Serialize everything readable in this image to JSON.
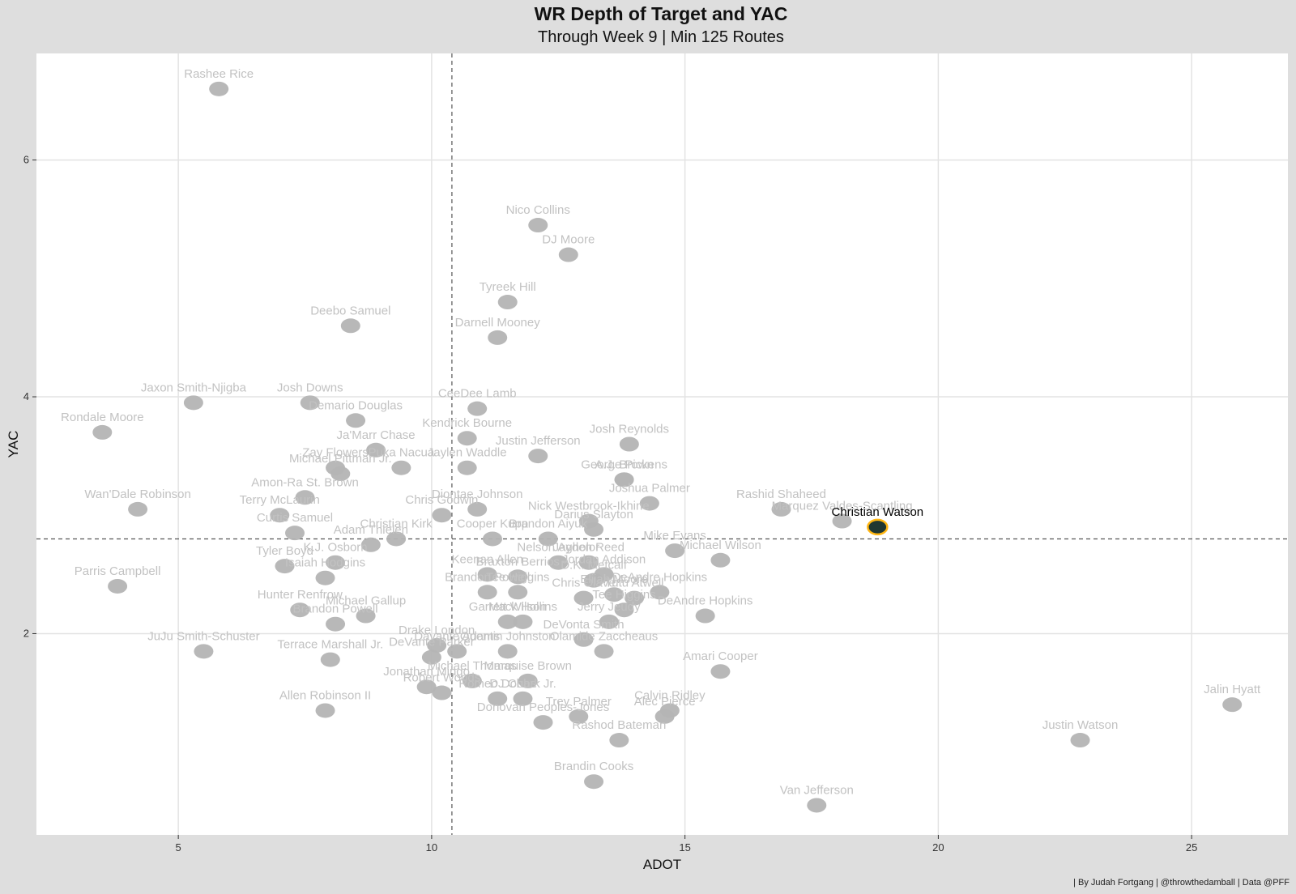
{
  "title": "WR Depth of Target and YAC",
  "subtitle": "Through Week 9 | Min 125 Routes",
  "caption": "| By Judah Fortgang | @throwthedamball | Data @PFF",
  "colors": {
    "panel": "#ffffff",
    "background": "#dedede",
    "grid": "#e3e3e3",
    "point": "#b4b4b4",
    "label": "#c2c2c2",
    "highlight_label": "#000000",
    "highlight_point": "#203731",
    "highlight_ring": "#ffb612"
  },
  "chart_data": {
    "type": "scatter",
    "title": "WR Depth of Target and YAC",
    "subtitle": "Through Week 9 | Min 125 Routes",
    "xlabel": "ADOT",
    "ylabel": "YAC",
    "xlim": [
      2.2,
      26.9
    ],
    "ylim": [
      0.3,
      6.9
    ],
    "xticks": [
      5,
      10,
      15,
      20,
      25
    ],
    "yticks": [
      2,
      4,
      6
    ],
    "grid": true,
    "reference_lines": {
      "x": 10.4,
      "y": 2.8
    },
    "highlight": "Christian Watson",
    "points": [
      {
        "name": "Rashee Rice",
        "x": 5.8,
        "y": 6.6
      },
      {
        "name": "Nico Collins",
        "x": 12.1,
        "y": 5.45
      },
      {
        "name": "DJ Moore",
        "x": 12.7,
        "y": 5.2
      },
      {
        "name": "Tyreek Hill",
        "x": 11.5,
        "y": 4.8
      },
      {
        "name": "Deebo Samuel",
        "x": 8.4,
        "y": 4.6
      },
      {
        "name": "Darnell Mooney",
        "x": 11.3,
        "y": 4.5
      },
      {
        "name": "Josh Downs",
        "x": 7.6,
        "y": 3.95
      },
      {
        "name": "CeeDee Lamb",
        "x": 10.9,
        "y": 3.9
      },
      {
        "name": "Jaxon Smith-Njigba",
        "x": 5.3,
        "y": 3.95
      },
      {
        "name": "Demario Douglas",
        "x": 8.5,
        "y": 3.8
      },
      {
        "name": "Rondale Moore",
        "x": 3.5,
        "y": 3.7
      },
      {
        "name": "Kendrick Bourne",
        "x": 10.7,
        "y": 3.65
      },
      {
        "name": "Josh Reynolds",
        "x": 13.9,
        "y": 3.6
      },
      {
        "name": "Ja'Marr Chase",
        "x": 8.9,
        "y": 3.55
      },
      {
        "name": "Justin Jefferson",
        "x": 12.1,
        "y": 3.5
      },
      {
        "name": "Zay Flowers",
        "x": 8.1,
        "y": 3.4
      },
      {
        "name": "Puka Nacua",
        "x": 9.4,
        "y": 3.4
      },
      {
        "name": "Jaylen Waddle",
        "x": 10.7,
        "y": 3.4
      },
      {
        "name": "George Pickens",
        "x": 13.8,
        "y": 3.3
      },
      {
        "name": "Michael Pittman Jr.",
        "x": 8.2,
        "y": 3.35
      },
      {
        "name": "A.J. Brown",
        "x": 13.8,
        "y": 3.3
      },
      {
        "name": "Amon-Ra St. Brown",
        "x": 7.5,
        "y": 3.15
      },
      {
        "name": "Diontae Johnson",
        "x": 10.9,
        "y": 3.05
      },
      {
        "name": "Chris Godwin",
        "x": 10.2,
        "y": 3.0
      },
      {
        "name": "Joshua Palmer",
        "x": 14.3,
        "y": 3.1
      },
      {
        "name": "Wan'Dale Robinson",
        "x": 4.2,
        "y": 3.05
      },
      {
        "name": "Rashid Shaheed",
        "x": 16.9,
        "y": 3.05
      },
      {
        "name": "Terry McLaurin",
        "x": 7.0,
        "y": 3.0
      },
      {
        "name": "Nick Westbrook-Ikhine",
        "x": 13.1,
        "y": 2.95
      },
      {
        "name": "Marquez Valdes-Scantling",
        "x": 18.1,
        "y": 2.95
      },
      {
        "name": "Christian Watson",
        "x": 18.8,
        "y": 2.9
      },
      {
        "name": "Curtis Samuel",
        "x": 7.3,
        "y": 2.85
      },
      {
        "name": "Darius Slayton",
        "x": 13.2,
        "y": 2.88
      },
      {
        "name": "Christian Kirk",
        "x": 9.3,
        "y": 2.8
      },
      {
        "name": "Cooper Kupp",
        "x": 11.2,
        "y": 2.8
      },
      {
        "name": "Brandon Aiyuk",
        "x": 12.3,
        "y": 2.8
      },
      {
        "name": "Adam Thielen",
        "x": 8.8,
        "y": 2.75
      },
      {
        "name": "Mike Evans",
        "x": 14.8,
        "y": 2.7
      },
      {
        "name": "Nelson Agholor",
        "x": 12.5,
        "y": 2.6
      },
      {
        "name": "K.J. Osborn",
        "x": 8.1,
        "y": 2.6
      },
      {
        "name": "Michael Wilson",
        "x": 15.7,
        "y": 2.62
      },
      {
        "name": "Tyler Boyd",
        "x": 7.1,
        "y": 2.57
      },
      {
        "name": "Jayden Reed",
        "x": 13.1,
        "y": 2.6
      },
      {
        "name": "Keenan Allen",
        "x": 11.1,
        "y": 2.5
      },
      {
        "name": "Jordan Addison",
        "x": 13.4,
        "y": 2.5
      },
      {
        "name": "Isaiah Hodgins",
        "x": 7.9,
        "y": 2.47
      },
      {
        "name": "Braxton Berrios",
        "x": 11.7,
        "y": 2.48
      },
      {
        "name": "Parris Campbell",
        "x": 3.8,
        "y": 2.4
      },
      {
        "name": "D.K. Metcalf",
        "x": 13.2,
        "y": 2.45
      },
      {
        "name": "Brandon Powell",
        "x": 11.1,
        "y": 2.35
      },
      {
        "name": "Tee Higgins",
        "x": 11.7,
        "y": 2.35
      },
      {
        "name": "DeAndre Hopkins",
        "x": 14.5,
        "y": 2.35
      },
      {
        "name": "Elijah Moore",
        "x": 13.6,
        "y": 2.33
      },
      {
        "name": "Chris Olave",
        "x": 13.0,
        "y": 2.3
      },
      {
        "name": "Tutu Atwell",
        "x": 14.0,
        "y": 2.3
      },
      {
        "name": "Hunter Renfrow",
        "x": 7.4,
        "y": 2.2
      },
      {
        "name": "Michael Gallup",
        "x": 8.7,
        "y": 2.15
      },
      {
        "name": "Garrett Wilson",
        "x": 11.5,
        "y": 2.1
      },
      {
        "name": "Mack Hollins",
        "x": 11.8,
        "y": 2.1
      },
      {
        "name": "Brandon Powell",
        "x": 8.1,
        "y": 2.08
      },
      {
        "name": "Jerry Jeudy",
        "x": 13.5,
        "y": 2.1
      },
      {
        "name": "DeAndre Hopkins",
        "x": 15.4,
        "y": 2.15
      },
      {
        "name": "Tee Higgins",
        "x": 13.8,
        "y": 2.2
      },
      {
        "name": "DeVonta Smith",
        "x": 13.0,
        "y": 1.95
      },
      {
        "name": "Drake London",
        "x": 10.1,
        "y": 1.9
      },
      {
        "name": "Davante Adams",
        "x": 10.5,
        "y": 1.85
      },
      {
        "name": "JuJu Smith-Schuster",
        "x": 5.5,
        "y": 1.85
      },
      {
        "name": "Quentin Johnston",
        "x": 11.5,
        "y": 1.85
      },
      {
        "name": "Olamide Zaccheaus",
        "x": 13.4,
        "y": 1.85
      },
      {
        "name": "Terrace Marshall Jr.",
        "x": 8.0,
        "y": 1.78
      },
      {
        "name": "DeVante Parker",
        "x": 10.0,
        "y": 1.8
      },
      {
        "name": "Amari Cooper",
        "x": 15.7,
        "y": 1.68
      },
      {
        "name": "Michael Thomas",
        "x": 10.8,
        "y": 1.6
      },
      {
        "name": "Marquise Brown",
        "x": 11.9,
        "y": 1.6
      },
      {
        "name": "Jonathan Mingo",
        "x": 9.9,
        "y": 1.55
      },
      {
        "name": "Robert Woods",
        "x": 10.2,
        "y": 1.5
      },
      {
        "name": "Romeo Doubs",
        "x": 11.3,
        "y": 1.45
      },
      {
        "name": "DJ Chark Jr.",
        "x": 11.8,
        "y": 1.45
      },
      {
        "name": "Calvin Ridley",
        "x": 14.7,
        "y": 1.35
      },
      {
        "name": "Allen Robinson II",
        "x": 7.9,
        "y": 1.35
      },
      {
        "name": "Alec Pierce",
        "x": 14.6,
        "y": 1.3
      },
      {
        "name": "Donovan Peoples-Jones",
        "x": 12.2,
        "y": 1.25
      },
      {
        "name": "Trey Palmer",
        "x": 12.9,
        "y": 1.3
      },
      {
        "name": "Rashod Bateman",
        "x": 13.7,
        "y": 1.1
      },
      {
        "name": "Justin Watson",
        "x": 22.8,
        "y": 1.1
      },
      {
        "name": "Jalin Hyatt",
        "x": 25.8,
        "y": 1.4
      },
      {
        "name": "Brandin Cooks",
        "x": 13.2,
        "y": 0.75
      },
      {
        "name": "Van Jefferson",
        "x": 17.6,
        "y": 0.55
      }
    ]
  }
}
